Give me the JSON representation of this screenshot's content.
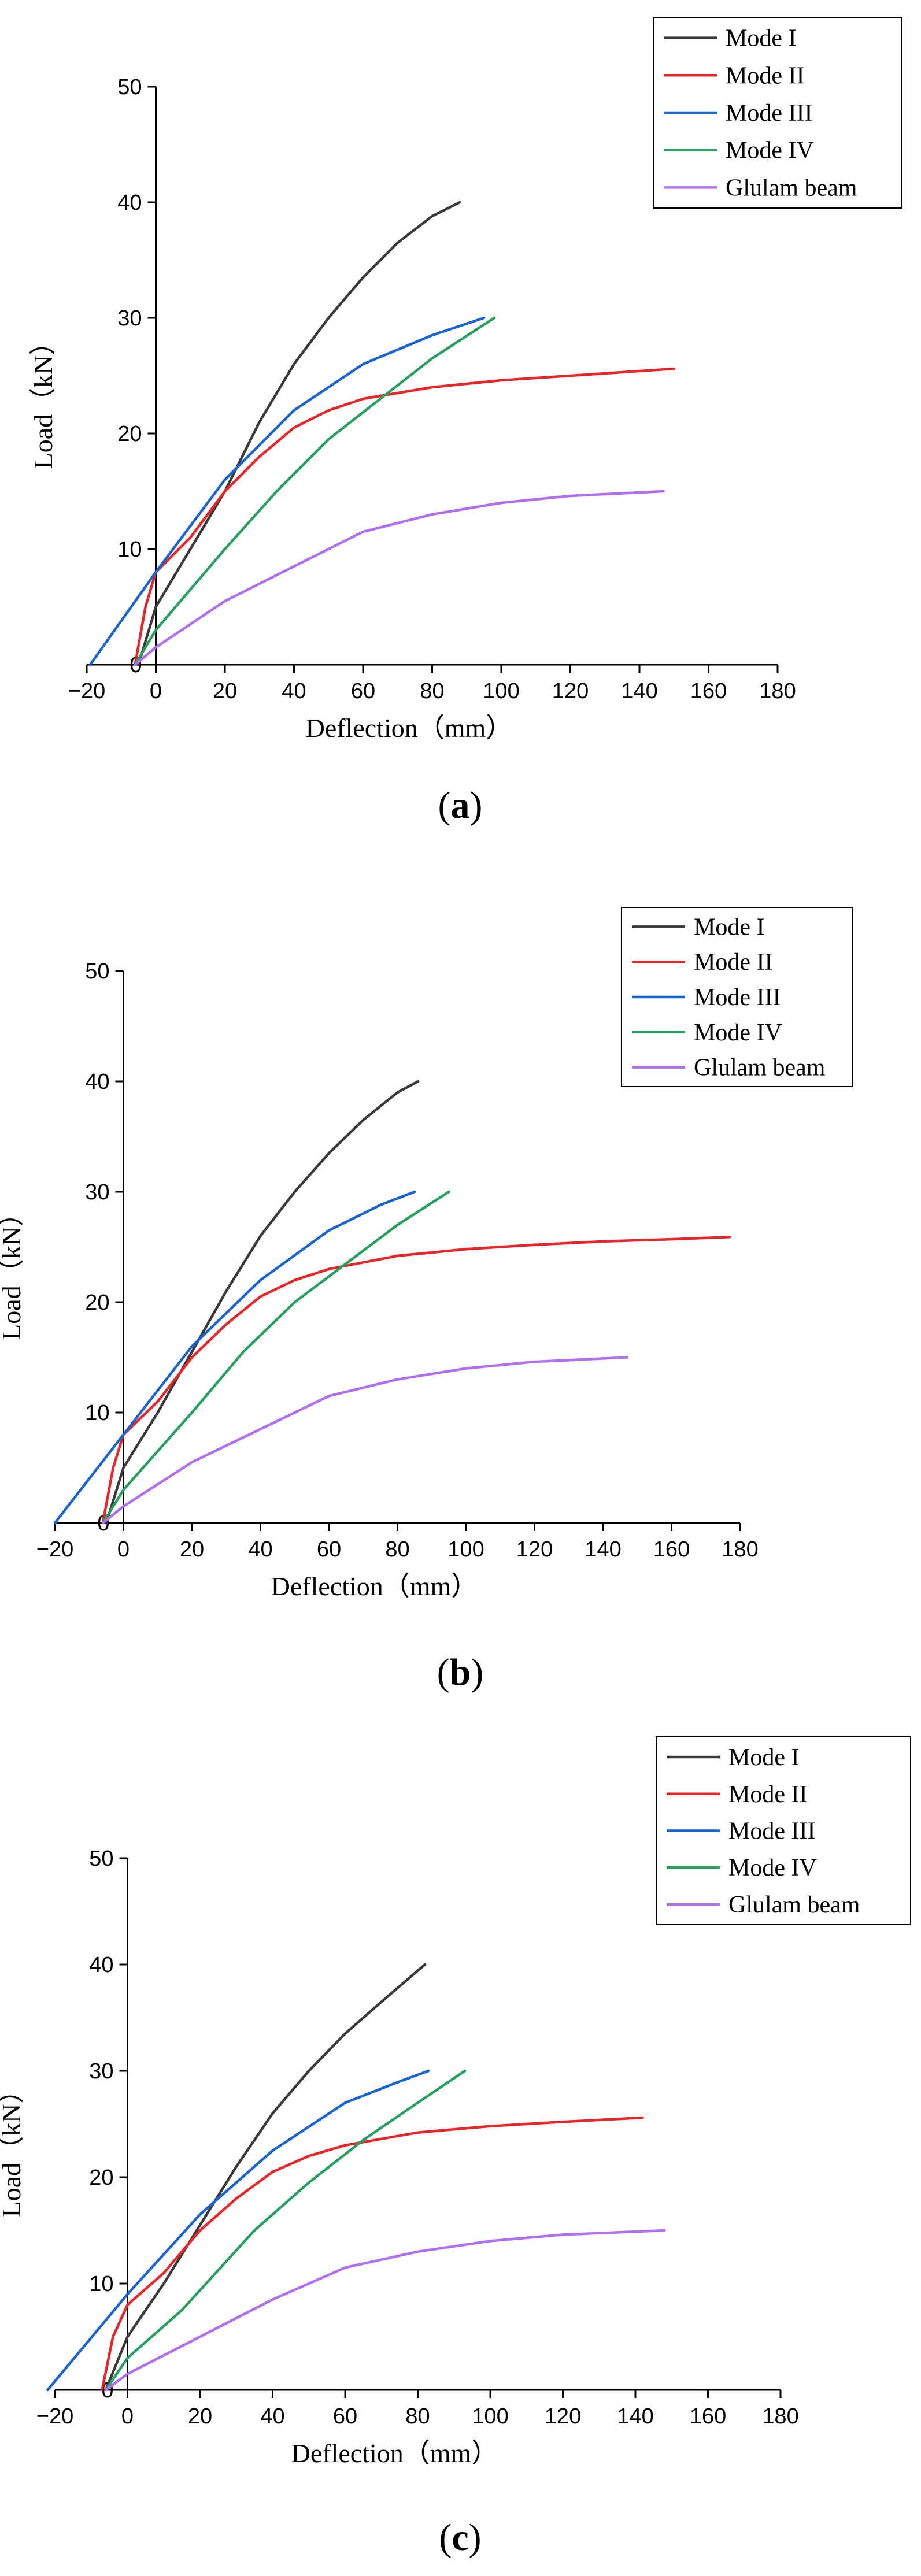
{
  "figure": {
    "panels": [
      {
        "caption": {
          "open": "(",
          "letter": "a",
          "close": ")"
        }
      },
      {
        "caption": {
          "open": "(",
          "letter": "b",
          "close": ")"
        }
      },
      {
        "caption": {
          "open": "(",
          "letter": "c",
          "close": ")"
        }
      }
    ]
  },
  "colors": {
    "Mode I": "#3a3a3a",
    "Mode II": "#e8262a",
    "Mode III": "#1a64d2",
    "Mode IV": "#25a060",
    "Glulam beam": "#b06ef0"
  },
  "chart_data": [
    {
      "type": "line",
      "panel": "a",
      "xlabel": "Deflection（mm）",
      "ylabel": "Load（kN）",
      "xlim": [
        -20,
        180
      ],
      "ylim": [
        0,
        50
      ],
      "xticks": [
        -20,
        0,
        20,
        40,
        60,
        80,
        100,
        120,
        140,
        160,
        180
      ],
      "yticks": [
        0,
        10,
        20,
        30,
        40,
        50
      ],
      "legend": "top-right",
      "series": [
        {
          "name": "Mode I",
          "x": [
            -5,
            0,
            10,
            20,
            30,
            40,
            50,
            60,
            70,
            80,
            88
          ],
          "y": [
            0,
            5,
            10,
            15,
            21,
            26,
            30,
            33.5,
            36.5,
            38.8,
            40
          ]
        },
        {
          "name": "Mode II",
          "x": [
            -6,
            -3,
            0,
            10,
            20,
            30,
            40,
            50,
            60,
            80,
            100,
            120,
            140,
            150
          ],
          "y": [
            0,
            5,
            8,
            11,
            15,
            18,
            20.5,
            22,
            23,
            24,
            24.6,
            25,
            25.4,
            25.6
          ]
        },
        {
          "name": "Mode III",
          "x": [
            -19,
            0,
            20,
            40,
            60,
            80,
            95
          ],
          "y": [
            0,
            8,
            16,
            22,
            26,
            28.5,
            30
          ]
        },
        {
          "name": "Mode IV",
          "x": [
            -6,
            0,
            20,
            35,
            50,
            65,
            80,
            98
          ],
          "y": [
            0,
            3,
            10,
            15,
            19.5,
            23,
            26.5,
            30
          ]
        },
        {
          "name": "Glulam beam",
          "x": [
            -6,
            0,
            20,
            40,
            60,
            80,
            100,
            120,
            147
          ],
          "y": [
            0,
            1.5,
            5.5,
            8.5,
            11.5,
            13,
            14,
            14.6,
            15
          ]
        }
      ]
    },
    {
      "type": "line",
      "panel": "b",
      "xlabel": "Deflection（mm）",
      "ylabel": "Load（kN）",
      "xlim": [
        -20,
        180
      ],
      "ylim": [
        0,
        50
      ],
      "xticks": [
        -20,
        0,
        20,
        40,
        60,
        80,
        100,
        120,
        140,
        160,
        180
      ],
      "yticks": [
        0,
        10,
        20,
        30,
        40,
        50
      ],
      "legend": "top-right",
      "series": [
        {
          "name": "Mode I",
          "x": [
            -5,
            0,
            10,
            20,
            30,
            40,
            50,
            60,
            70,
            80,
            86
          ],
          "y": [
            0,
            5,
            10,
            15.5,
            21,
            26,
            30,
            33.5,
            36.5,
            39,
            40
          ]
        },
        {
          "name": "Mode II",
          "x": [
            -6,
            -3,
            0,
            10,
            20,
            30,
            40,
            50,
            60,
            80,
            100,
            120,
            140,
            160,
            177
          ],
          "y": [
            0,
            5,
            8,
            11,
            15,
            18,
            20.5,
            22,
            23,
            24.2,
            24.8,
            25.2,
            25.5,
            25.7,
            25.9
          ]
        },
        {
          "name": "Mode III",
          "x": [
            -20,
            0,
            20,
            40,
            60,
            75,
            85
          ],
          "y": [
            0,
            8,
            16,
            22,
            26.5,
            28.8,
            30
          ]
        },
        {
          "name": "Mode IV",
          "x": [
            -6,
            0,
            20,
            35,
            50,
            65,
            80,
            95
          ],
          "y": [
            0,
            3,
            10,
            15.5,
            20,
            23.5,
            27,
            30
          ]
        },
        {
          "name": "Glulam beam",
          "x": [
            -6,
            0,
            20,
            40,
            60,
            80,
            100,
            120,
            147
          ],
          "y": [
            0,
            1.5,
            5.5,
            8.5,
            11.5,
            13,
            14,
            14.6,
            15
          ]
        }
      ]
    },
    {
      "type": "line",
      "panel": "c",
      "xlabel": "Deflection（mm）",
      "ylabel": "Load（kN）",
      "xlim": [
        -20,
        180
      ],
      "ylim": [
        0,
        50
      ],
      "xticks": [
        -20,
        0,
        20,
        40,
        60,
        80,
        100,
        120,
        140,
        160,
        180
      ],
      "yticks": [
        0,
        10,
        20,
        30,
        40,
        50
      ],
      "legend": "top-right",
      "series": [
        {
          "name": "Mode I",
          "x": [
            -6,
            0,
            10,
            20,
            30,
            40,
            50,
            60,
            70,
            82
          ],
          "y": [
            0,
            5,
            10,
            15.5,
            21,
            26,
            30,
            33.5,
            36.5,
            40
          ]
        },
        {
          "name": "Mode II",
          "x": [
            -7,
            -4,
            0,
            10,
            20,
            30,
            40,
            50,
            60,
            80,
            100,
            120,
            142
          ],
          "y": [
            0,
            5,
            8,
            11,
            15,
            18,
            20.5,
            22,
            23,
            24.2,
            24.8,
            25.2,
            25.6
          ]
        },
        {
          "name": "Mode III",
          "x": [
            -22,
            0,
            20,
            40,
            60,
            75,
            83
          ],
          "y": [
            0,
            9,
            16.5,
            22.5,
            27,
            29,
            30
          ]
        },
        {
          "name": "Mode IV",
          "x": [
            -6,
            0,
            15,
            35,
            50,
            65,
            80,
            93
          ],
          "y": [
            0,
            3,
            7.5,
            15,
            19.5,
            23.5,
            27,
            30
          ]
        },
        {
          "name": "Glulam beam",
          "x": [
            -6,
            0,
            20,
            40,
            60,
            80,
            100,
            120,
            148
          ],
          "y": [
            0,
            1.5,
            5,
            8.5,
            11.5,
            13,
            14,
            14.6,
            15
          ]
        }
      ]
    }
  ]
}
